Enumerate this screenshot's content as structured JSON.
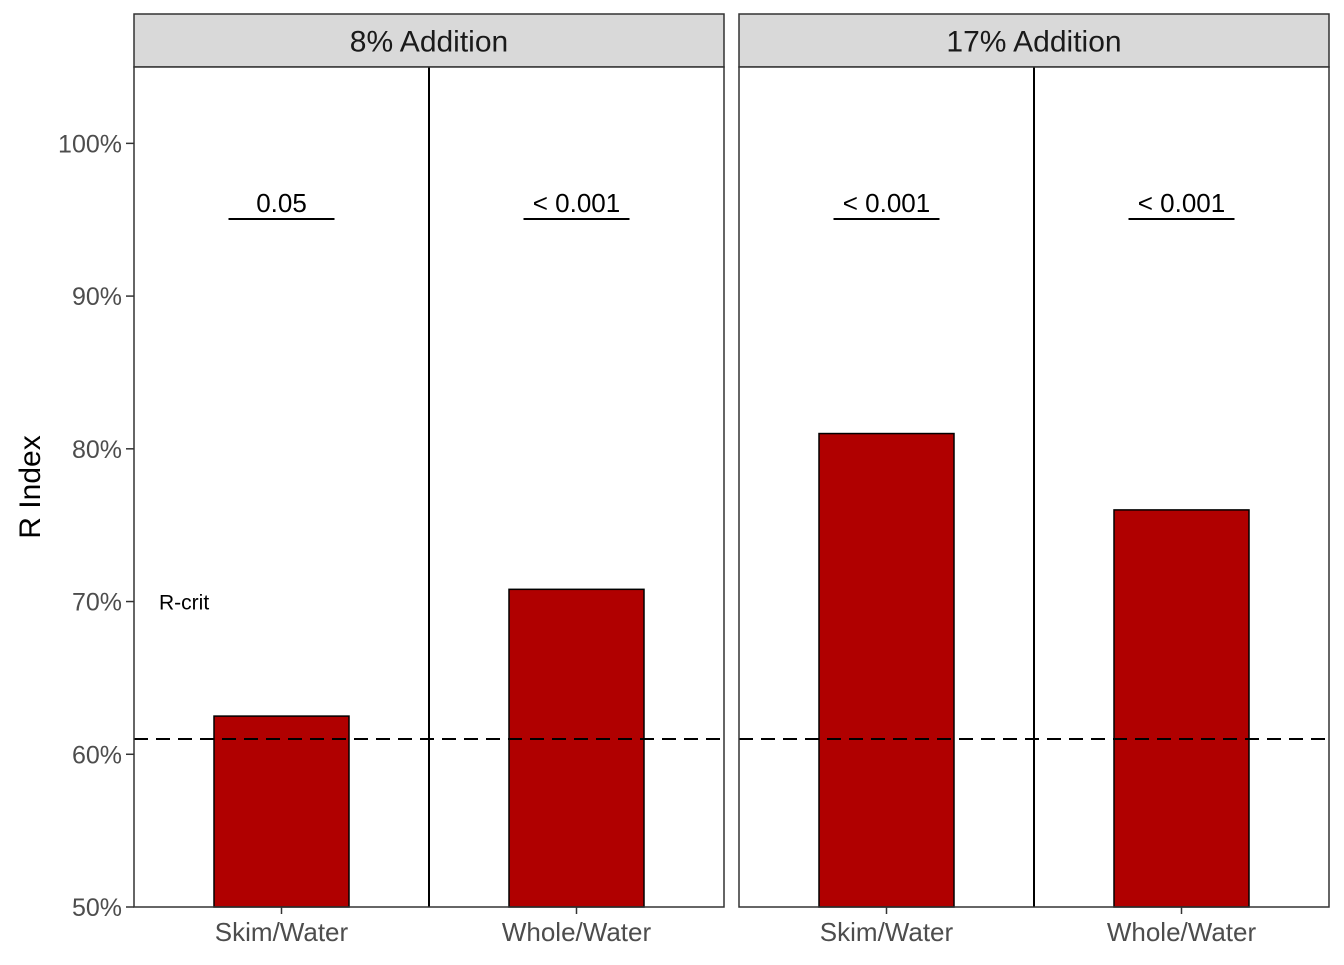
{
  "chart_data": {
    "type": "bar",
    "ylabel": "R Index",
    "xlabel": "",
    "ylim": [
      50,
      105
    ],
    "y_ticks": [
      50,
      60,
      70,
      80,
      90,
      100
    ],
    "y_tick_suffix": "%",
    "grid": false,
    "reference_line": {
      "value": 61,
      "label": "R-crit",
      "style": "dashed"
    },
    "bar_color": "#B00000",
    "panels": [
      {
        "title": "8% Addition",
        "categories": [
          "Skim/Water",
          "Whole/Water"
        ],
        "values": [
          62.5,
          70.8
        ],
        "p_labels": [
          "0.05",
          "< 0.001"
        ]
      },
      {
        "title": "17% Addition",
        "categories": [
          "Skim/Water",
          "Whole/Water"
        ],
        "values": [
          81.0,
          76.0
        ],
        "p_labels": [
          "< 0.001",
          "< 0.001"
        ]
      }
    ]
  }
}
